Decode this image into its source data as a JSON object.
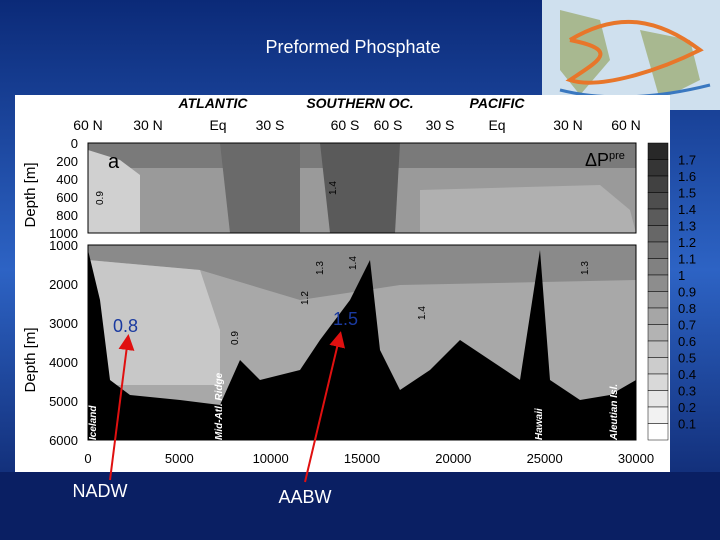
{
  "slide": {
    "title": "Preformed Phosphate"
  },
  "figure": {
    "panel_label": "a",
    "quantity": "ΔP",
    "quantity_sup": "pre",
    "basins": [
      "ATLANTIC",
      "SOUTHERN OC.",
      "PACIFIC"
    ],
    "latitudes": [
      "60 N",
      "30 N",
      "Eq",
      "30 S",
      "60 S",
      "60 S",
      "30 S",
      "Eq",
      "30 N",
      "60 N"
    ],
    "y_label_upper": "Depth [m]",
    "y_label_lower": "Depth [m]",
    "upper_depth_ticks": [
      0,
      200,
      400,
      600,
      800,
      1000
    ],
    "lower_depth_ticks": [
      1000,
      2000,
      3000,
      4000,
      5000,
      6000
    ],
    "distance_ticks": [
      0,
      5000,
      10000,
      15000,
      20000,
      25000,
      30000
    ],
    "colorbar_ticks": [
      1.7,
      1.6,
      1.5,
      1.4,
      1.3,
      1.2,
      1.1,
      1.0,
      0.9,
      0.8,
      0.7,
      0.6,
      0.5,
      0.4,
      0.3,
      0.2,
      0.1
    ],
    "features": [
      "Iceland",
      "Mid-Atl. Ridge",
      "Hawaii",
      "Aleutian Isl."
    ],
    "contour_labels": [
      "0.8",
      "1.5"
    ],
    "small_contour_labels": [
      "0.9",
      "1.4",
      "1.3",
      "1.2",
      "1.4",
      "0.9",
      "1.4",
      "1.3"
    ]
  },
  "annotations": [
    "NADW",
    "AABW"
  ]
}
